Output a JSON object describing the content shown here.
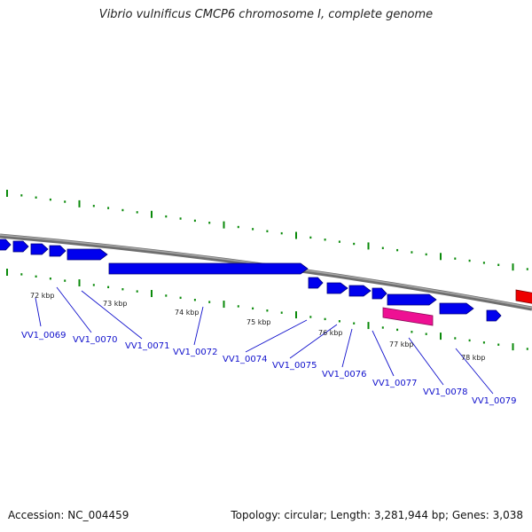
{
  "title": "Vibrio vulnificus CMCP6 chromosome I, complete genome",
  "footer": {
    "accession": "Accession: NC_004459",
    "summary": "Topology: circular; Length: 3,281,944 bp; Genes: 3,038"
  },
  "colors": {
    "backbone": "#808080",
    "tick": "#0a8a0a",
    "gene_forward": "#0000ee",
    "gene_highlight": "#ee1093",
    "gene_other": "#ee0000",
    "label": "#1010cc"
  },
  "scale_labels": [
    "72 kbp",
    "73 kbp",
    "74 kbp",
    "75 kbp",
    "76 kbp",
    "77 kbp",
    "78 kbp"
  ],
  "gene_labels": [
    "VV1_0069",
    "VV1_0070",
    "VV1_0071",
    "VV1_0072",
    "VV1_0074",
    "VV1_0075",
    "VV1_0076",
    "VV1_0077",
    "VV1_0078",
    "VV1_0079"
  ]
}
